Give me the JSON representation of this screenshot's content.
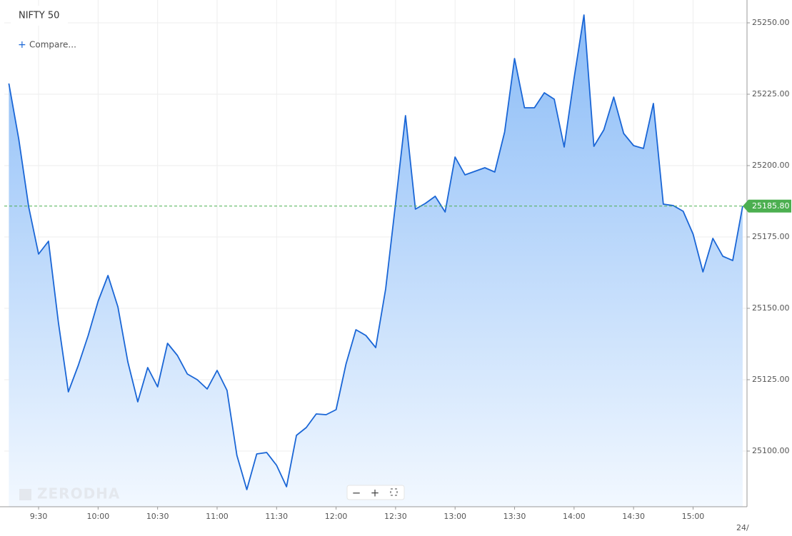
{
  "chart_data": {
    "type": "area",
    "title": "NIFTY 50",
    "compare_button": "Compare...",
    "watermark": "ZERODHA",
    "date_label": "24/",
    "x": [
      555,
      560,
      565,
      570,
      575,
      580,
      585,
      590,
      595,
      600,
      605,
      610,
      615,
      620,
      625,
      630,
      635,
      640,
      645,
      650,
      655,
      660,
      665,
      670,
      675,
      680,
      685,
      690,
      695,
      700,
      705,
      710,
      715,
      720,
      725,
      730,
      735,
      740,
      745,
      750,
      755,
      760,
      765,
      770,
      775,
      780,
      785,
      790,
      795,
      800,
      805,
      810,
      815,
      820,
      825,
      830,
      835,
      840,
      845,
      850,
      855,
      860,
      865,
      870,
      875,
      880,
      885,
      890,
      895,
      900,
      905,
      910,
      915,
      920,
      925
    ],
    "series": [
      {
        "name": "NIFTY 50",
        "color": "#1a66d6",
        "values": [
          25228.75,
          25209.25,
          25185.5,
          25169,
          25173.5,
          25145,
          25120.75,
          25130,
          25140.5,
          25152.5,
          25161.5,
          25150.5,
          25131.25,
          25117.25,
          25129.25,
          25122.5,
          25137.75,
          25133.5,
          25127,
          25125,
          25121.75,
          25128.25,
          25121.25,
          25098.5,
          25086.5,
          25099,
          25099.5,
          25095,
          25087.5,
          25105.5,
          25108.25,
          25113,
          25112.75,
          25114.5,
          25130.5,
          25142.5,
          25140.5,
          25136.25,
          25156.75,
          25186.75,
          25217.5,
          25184.75,
          25186.75,
          25189.25,
          25183.75,
          25203,
          25196.75,
          25198,
          25199.25,
          25197.75,
          25211.75,
          25237.5,
          25220.25,
          25220.25,
          25225.5,
          25223.25,
          25206.5,
          25230.5,
          25252.75,
          25206.75,
          25212.5,
          25224,
          25211.25,
          25207,
          25206,
          25221.75,
          25186.5,
          25186,
          25184,
          25176,
          25162.75,
          25174.5,
          25168.25,
          25166.75,
          25185.8
        ]
      }
    ],
    "last_price": {
      "value": 25185.8,
      "label": "25185.80",
      "color": "#4caf50"
    },
    "xlim": [
      552.7,
      927.2
    ],
    "ylim": [
      25080.5,
      25258
    ],
    "xticks": [
      {
        "value": 570,
        "label": "9:30"
      },
      {
        "value": 600,
        "label": "10:00"
      },
      {
        "value": 630,
        "label": "10:30"
      },
      {
        "value": 660,
        "label": "11:00"
      },
      {
        "value": 690,
        "label": "11:30"
      },
      {
        "value": 720,
        "label": "12:00"
      },
      {
        "value": 750,
        "label": "12:30"
      },
      {
        "value": 780,
        "label": "13:00"
      },
      {
        "value": 810,
        "label": "13:30"
      },
      {
        "value": 840,
        "label": "14:00"
      },
      {
        "value": 870,
        "label": "14:30"
      },
      {
        "value": 900,
        "label": "15:00"
      }
    ],
    "yticks": [
      {
        "value": 25100,
        "label": "25100.00"
      },
      {
        "value": 25125,
        "label": "25125.00"
      },
      {
        "value": 25150,
        "label": "25150.00"
      },
      {
        "value": 25175,
        "label": "25175.00"
      },
      {
        "value": 25200,
        "label": "25200.00"
      },
      {
        "value": 25225,
        "label": "25225.00"
      },
      {
        "value": 25250,
        "label": "25250.00"
      }
    ],
    "grid": true
  }
}
